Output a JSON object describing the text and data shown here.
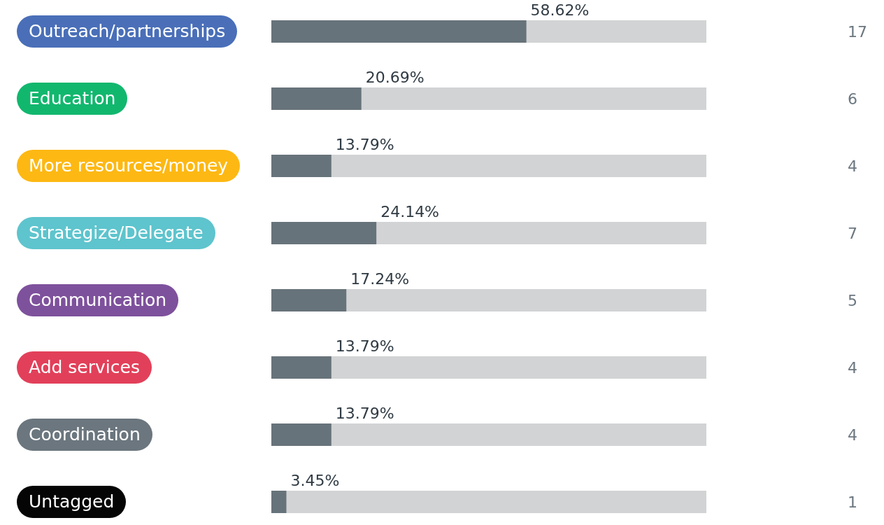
{
  "chart_data": {
    "type": "bar",
    "orientation": "horizontal",
    "tick_labels": "y",
    "categories": [
      "Outreach/partnerships",
      "Education",
      "More resources/money",
      "Strategize/Delegate",
      "Communication",
      "Add services",
      "Coordination",
      "Untagged"
    ],
    "series": [
      {
        "color": "#67737a",
        "values": [
          58.62,
          20.69,
          13.79,
          24.14,
          17.24,
          13.79,
          13.79,
          3.45
        ],
        "value_labels": [
          "58.62%",
          "20.69%",
          "13.79%",
          "24.14%",
          "17.24%",
          "13.79%",
          "13.79%",
          "3.45%"
        ]
      }
    ],
    "xlim": [
      0,
      100
    ],
    "annotations": [
      "17",
      "6",
      "4",
      "7",
      "5",
      "4",
      "4",
      "1"
    ]
  }
}
